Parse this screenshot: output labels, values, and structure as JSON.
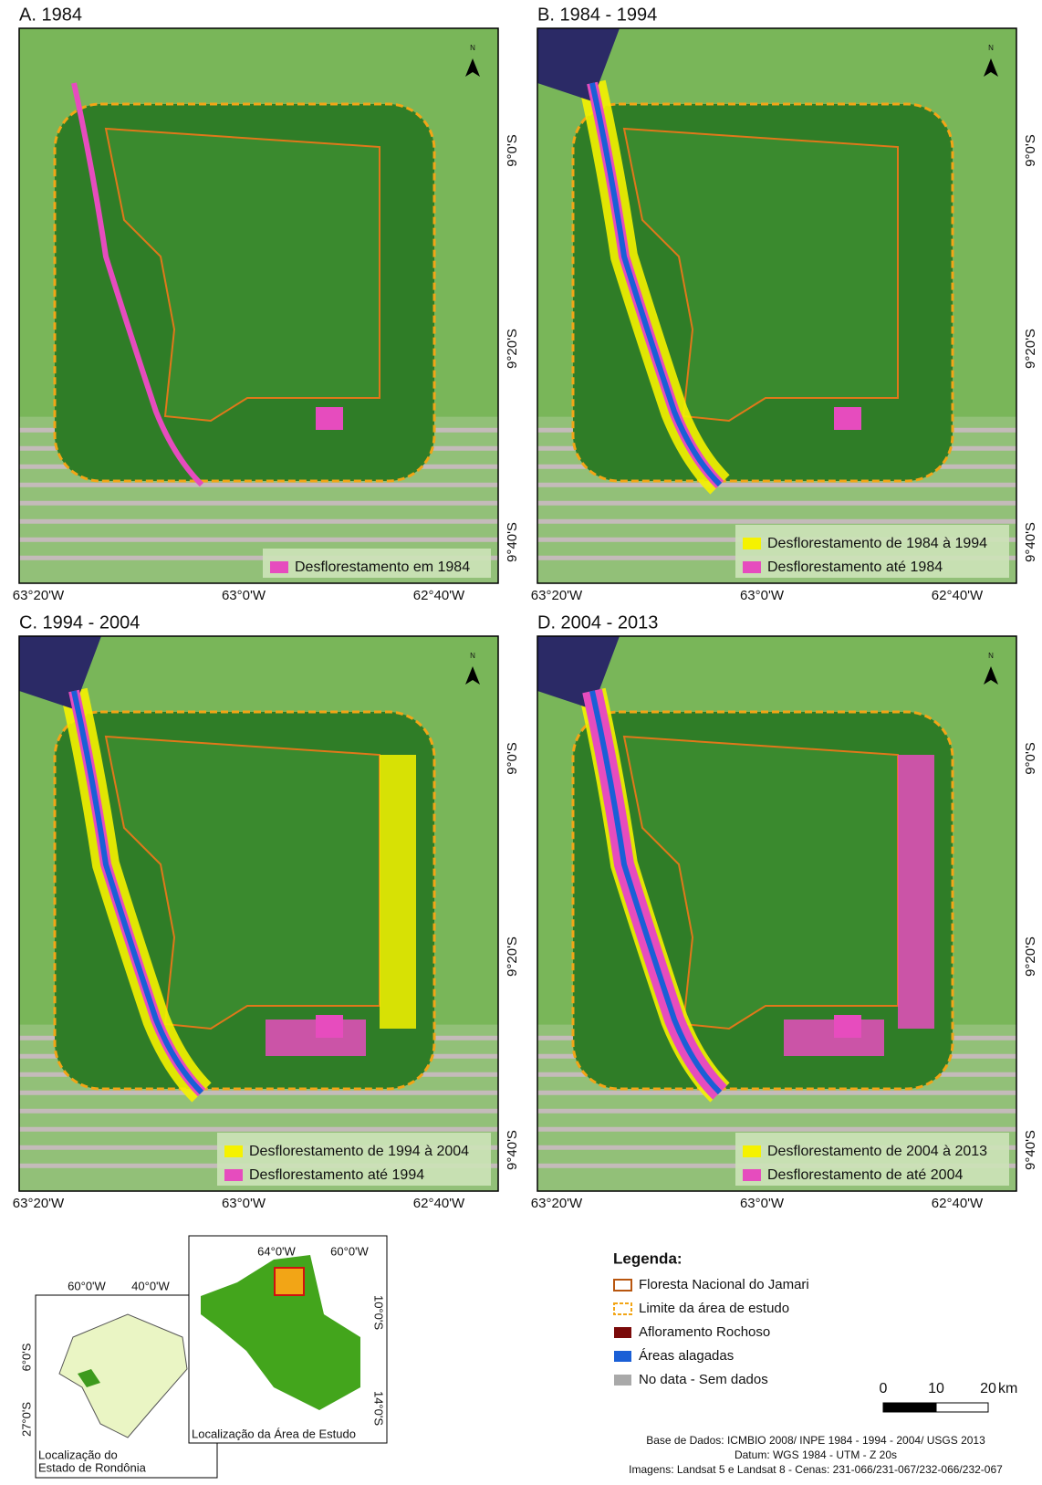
{
  "panels": [
    {
      "title": "A. 1984",
      "legend": [
        {
          "label": "Desflorestamento em 1984",
          "color": "#e64cbe"
        }
      ]
    },
    {
      "title": "B. 1984 - 1994",
      "legend": [
        {
          "label": "Desflorestamento de 1984 à 1994",
          "color": "#f5f200"
        },
        {
          "label": "Desflorestamento até 1984",
          "color": "#e64cbe"
        }
      ]
    },
    {
      "title": "C. 1994 - 2004",
      "legend": [
        {
          "label": "Desflorestamento de 1994 à 2004",
          "color": "#f5f200"
        },
        {
          "label": "Desflorestamento até 1994",
          "color": "#e64cbe"
        }
      ]
    },
    {
      "title": "D. 2004 - 2013",
      "legend": [
        {
          "label": "Desflorestamento de 2004 à 2013",
          "color": "#f5f200"
        },
        {
          "label": "Desflorestamento de até 2004",
          "color": "#e64cbe"
        }
      ]
    }
  ],
  "x_labels": [
    "63°20'W",
    "63°0'W",
    "62°40'W"
  ],
  "y_labels": [
    "9°0'S",
    "9°20'S",
    "9°40'S"
  ],
  "north": "N",
  "inset_brazil": {
    "x_labels": [
      "60°0'W",
      "40°0'W"
    ],
    "y_labels": [
      "6°0'S",
      "27°0'S"
    ],
    "caption": [
      "Localização do",
      "Estado de Rondônia"
    ]
  },
  "inset_rondonia": {
    "x_labels": [
      "64°0'W",
      "60°0'W"
    ],
    "y_labels": [
      "10°0'S",
      "14°0'S"
    ],
    "caption": "Localização da Área de Estudo"
  },
  "legend": {
    "title": "Legenda:",
    "items": [
      {
        "label": "Floresta Nacional do Jamari",
        "color": "#b8560f"
      },
      {
        "label": "Limite da área de estudo",
        "color": "#f2a516"
      },
      {
        "label": "Afloramento Rochoso",
        "color": "#7a0a0a"
      },
      {
        "label": "Áreas alagadas",
        "color": "#1a5fd6"
      },
      {
        "label": "No data - Sem dados",
        "color": "#a9a9a9"
      }
    ]
  },
  "scale": {
    "ticks": [
      0,
      10,
      20
    ],
    "unit": "km"
  },
  "credits": [
    "Base de Dados: ICMBIO 2008/ INPE 1984 - 1994 - 2004/ USGS 2013",
    "Datum: WGS 1984 - UTM - Z 20s",
    "Imagens: Landsat 5 e Landsat 8 - Cenas: 231-066/231-067/232-066/232-067"
  ]
}
